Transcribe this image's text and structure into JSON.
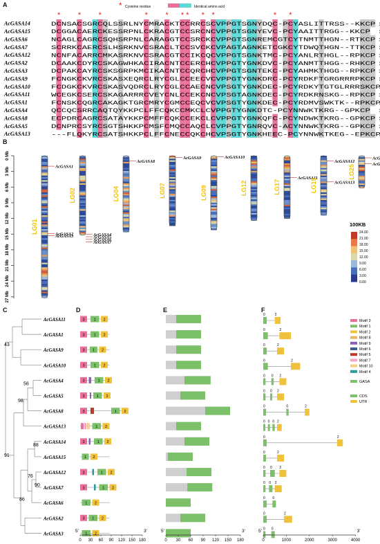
{
  "panels": {
    "a": "A",
    "b": "B",
    "c": "C",
    "d": "D",
    "e": "E",
    "f": "F"
  },
  "legend_top": {
    "star": "*",
    "cys": "Cysteine residue",
    "ident": "Identical amino acid"
  },
  "alignment": [
    {
      "name": "AcGASA14",
      "seq": "DCNSACSGRCQLSSRLNYCMRACKTCCRRCSCVPPGTSGNYDQC-PCYASLITTRSS--KKCP",
      "num": "60"
    },
    {
      "name": "AcGASA15",
      "seq": "DCGGACAERCKESSRPNLCKRACGTCCSRCNCVPPGTSGNYEVC-PCYAAITTRGG--KKCP",
      "num": "60"
    },
    {
      "name": "AcGASA6",
      "seq": "NCAGLCAGRCSQHSRPNLCARAGGTCCSRCKCVPPGTSGNREMCGTCYTNMTTHGN--RTKCP",
      "num": "61"
    },
    {
      "name": "AcGASA7",
      "seq": "SCRRKCAERCSLHSRKNVCSRACLTCCSVCKCVPAGTAGNKETCGKCYTDWQTHGN--TTKCP",
      "num": "61"
    },
    {
      "name": "AcGASA12",
      "seq": "NCNFACARRCMKASRKNVCSRACGTCCIKCQCVPPGTSGNKTMC-PCYANLRTHGL--RPKCP",
      "num": "60"
    },
    {
      "name": "AcGASA2",
      "seq": "DCAAKCDYRCSKAGWHKACIRACNTCCERCHCVPPGTYGNKDVC-PCYANMTTHGG--RHKCP",
      "num": "60"
    },
    {
      "name": "AcGASA3",
      "seq": "DCPAKCAYRCSKSGRPKMCIKACNTCCQRCHCVPPGTSGNTEKC-PCYAHMKTHGG--RPKCP",
      "num": "60"
    },
    {
      "name": "AcGASA9",
      "seq": "FCNGKCKVRCSKASXEQRCLRYCGLCCEECVCVPPGTYGNKDRC-PCYRDKFTGRGRRRPKCP",
      "num": "63"
    },
    {
      "name": "AcGASA10",
      "seq": "FCDGKCKVRCSKASVQDRCLRYCGLCCAECNCVPSGTYGNKDEC-PCYRDKYTGTGLRRRSKCP",
      "num": "63"
    },
    {
      "name": "AcGASA11",
      "seq": "WCEGKCSERCSKAGARRRCVEYCNLCCEKCNCVPSGTAGNKDEC-PCYRDKRNSKG--RPKCP",
      "num": "60"
    },
    {
      "name": "AcGASA1",
      "seq": "FCNSKCQGRCAKAGKTGRCMRYCGMCCEQCVCVPSGTYGNKDEC-PCYRDMVSWKTK--RPKCP",
      "num": "61"
    },
    {
      "name": "AcGASA4",
      "seq": "QCCQCSRRCAQTQYKKPCLFFCQKCCMKCLCVPPGTYGNKDTC-PCYNNWKTKRG--GPKCP",
      "num": "60"
    },
    {
      "name": "AcGASA8",
      "seq": "ECPDRCAGRCSATAYKKPCMFFCQKCCEKCLCVPPGTYGNKQFC-PCYNDWKTKRG--GPKCP",
      "num": "60"
    },
    {
      "name": "AcGASA5",
      "seq": "DCNPRCSYRCSGTSHKKPCMSFCMQCCAQCLCVPPGTYGNRQVC-ACYNNWKTKRG--GPKCP",
      "num": "60"
    },
    {
      "name": "AcGASA13",
      "seq": "---FLQKYRCSATSHKKPCLFFCNECCQKCHCVPSGTYGNKHEEC-PCYNNWKTKEG--EPKCP",
      "num": "57"
    }
  ],
  "chromosomes": [
    {
      "name": "LG01",
      "mb": 27.2,
      "genes": [
        {
          "name": "AcGASA1",
          "mb": 2.0
        },
        {
          "name": "AcGASA2",
          "mb": 14.9
        },
        {
          "name": "AcGASA3",
          "mb": 15.3
        }
      ]
    },
    {
      "name": "LG02",
      "mb": 15.2,
      "genes": [
        {
          "name": "AcGASA4",
          "mb": 15.0
        },
        {
          "name": "AcGASA5",
          "mb": 15.5
        },
        {
          "name": "AcGASA6",
          "mb": 16.0
        },
        {
          "name": "AcGASA7",
          "mb": 16.5
        }
      ]
    },
    {
      "name": "LG04",
      "mb": 14.6,
      "genes": [
        {
          "name": "AcGASA8",
          "mb": 1.0
        }
      ]
    },
    {
      "name": "LG07",
      "mb": 13.4,
      "genes": [
        {
          "name": "AcGASA9",
          "mb": 0.3
        }
      ]
    },
    {
      "name": "LG09",
      "mb": 14.2,
      "genes": [
        {
          "name": "AcGASA10",
          "mb": 0.2
        }
      ]
    },
    {
      "name": "LG12",
      "mb": 12.4,
      "genes": []
    },
    {
      "name": "LG17",
      "mb": 12.0,
      "genes": [
        {
          "name": "AcGASA11",
          "mb": 4.2
        }
      ]
    },
    {
      "name": "LG19",
      "mb": 11.4,
      "genes": [
        {
          "name": "AcGASA12",
          "mb": 1.0
        },
        {
          "name": "AcGASA13",
          "mb": 5.0
        }
      ]
    },
    {
      "name": "LG25",
      "mb": 6.2,
      "genes": [
        {
          "name": "AcGASA14",
          "mb": 0.4
        },
        {
          "name": "AcGASA15",
          "mb": 1.5
        }
      ]
    }
  ],
  "mb_axis": {
    "ticks": [
      "0 Mb",
      "3 Mb",
      "6 Mb",
      "9 Mb",
      "12 Mb",
      "15 Mb",
      "18 Mb",
      "21 Mb",
      "24 Mb",
      "27 Mb"
    ]
  },
  "heat_legend": {
    "title": "100KB",
    "ticks": [
      "24.00",
      "21.00",
      "18.00",
      "15.00",
      "12.00",
      "9.00",
      "6.00",
      "3.00",
      "0.00"
    ]
  },
  "tree": {
    "leaves": [
      "AcGASA11",
      "AcGASA1",
      "AcGASA9",
      "AcGASA10",
      "AcGASA4",
      "AcGASA5",
      "AcGASA8",
      "AcGASA13",
      "AcGASA14",
      "AcGASA15",
      "AcGASA12",
      "AcGASA7",
      "AcGASA6",
      "AcGASA2",
      "AcGASA3"
    ],
    "bootstrap": [
      "43",
      "56",
      "98",
      "88",
      "76",
      "91",
      "90",
      "86"
    ]
  },
  "motifs": [
    [
      [
        0,
        20,
        3
      ],
      [
        30,
        55,
        1
      ],
      [
        60,
        80,
        2
      ]
    ],
    [
      [
        0,
        20,
        3
      ],
      [
        30,
        55,
        1
      ],
      [
        60,
        80,
        2
      ]
    ],
    [
      [
        0,
        20,
        3
      ],
      [
        28,
        50,
        1
      ],
      [
        55,
        75,
        2
      ]
    ],
    [
      [
        0,
        20,
        3
      ],
      [
        30,
        55,
        1
      ],
      [
        60,
        80,
        2
      ]
    ],
    [
      [
        0,
        20,
        3
      ],
      [
        25,
        32,
        9
      ],
      [
        42,
        67,
        1
      ],
      [
        72,
        92,
        2
      ]
    ],
    [
      [
        0,
        20,
        3
      ],
      [
        28,
        32,
        9
      ],
      [
        38,
        63,
        1
      ],
      [
        68,
        88,
        2
      ]
    ],
    [
      [
        0,
        20,
        3
      ],
      [
        30,
        40,
        5
      ],
      [
        90,
        115,
        1
      ],
      [
        120,
        140,
        2
      ]
    ],
    [
      [
        2,
        10,
        3
      ],
      [
        12,
        18,
        7
      ],
      [
        20,
        28,
        10
      ],
      [
        35,
        60,
        1
      ],
      [
        65,
        85,
        2
      ]
    ],
    [
      [
        0,
        20,
        3
      ],
      [
        25,
        30,
        9
      ],
      [
        40,
        65,
        1
      ],
      [
        70,
        90,
        2
      ]
    ],
    [
      [
        5,
        25,
        1
      ],
      [
        30,
        50,
        2
      ]
    ],
    [
      [
        0,
        20,
        3
      ],
      [
        35,
        40,
        4
      ],
      [
        50,
        75,
        1
      ],
      [
        80,
        100,
        2
      ]
    ],
    [
      [
        0,
        20,
        3
      ],
      [
        40,
        45,
        4
      ],
      [
        55,
        80,
        1
      ],
      [
        85,
        105,
        2
      ]
    ],
    [
      [
        5,
        30,
        1
      ],
      [
        35,
        55,
        2
      ]
    ],
    [
      [
        0,
        20,
        3
      ],
      [
        25,
        50,
        1
      ],
      [
        55,
        75,
        2
      ]
    ],
    [
      [
        5,
        30,
        1
      ],
      [
        35,
        55,
        2
      ]
    ]
  ],
  "domain_bars": [
    {
      "len": 85,
      "gasa": [
        25,
        85
      ]
    },
    {
      "len": 85,
      "gasa": [
        25,
        85
      ]
    },
    {
      "len": 85,
      "gasa": [
        25,
        85
      ]
    },
    {
      "len": 85,
      "gasa": [
        25,
        85
      ]
    },
    {
      "len": 108,
      "gasa": [
        45,
        108
      ]
    },
    {
      "len": 95,
      "gasa": [
        35,
        95
      ]
    },
    {
      "len": 155,
      "gasa": [
        95,
        155
      ]
    },
    {
      "len": 85,
      "gasa": [
        25,
        85
      ]
    },
    {
      "len": 105,
      "gasa": [
        45,
        105
      ]
    },
    {
      "len": 65,
      "gasa": [
        5,
        65
      ]
    },
    {
      "len": 110,
      "gasa": [
        50,
        110
      ]
    },
    {
      "len": 112,
      "gasa": [
        52,
        112
      ]
    },
    {
      "len": 60,
      "gasa": [
        0,
        60
      ]
    },
    {
      "len": 95,
      "gasa": [
        35,
        95
      ]
    },
    {
      "len": 60,
      "gasa": [
        0,
        60
      ]
    }
  ],
  "gene_struct": [
    {
      "exons": [
        [
          0,
          150,
          "cds"
        ],
        [
          500,
          750,
          "utr"
        ]
      ]
    },
    {
      "exons": [
        [
          0,
          200,
          "cds"
        ],
        [
          700,
          1200,
          "utr"
        ]
      ]
    },
    {
      "exons": [
        [
          0,
          150,
          "cds"
        ],
        [
          600,
          900,
          "utr"
        ]
      ]
    },
    {
      "exons": [
        [
          0,
          200,
          "cds"
        ],
        [
          1200,
          1600,
          "utr"
        ]
      ]
    },
    {
      "exons": [
        [
          0,
          100,
          "cds"
        ],
        [
          350,
          450,
          "cds"
        ],
        [
          700,
          1000,
          "utr"
        ]
      ]
    },
    {
      "exons": [
        [
          0,
          100,
          "cds"
        ],
        [
          300,
          380,
          "cds"
        ],
        [
          600,
          900,
          "utr"
        ]
      ]
    },
    {
      "exons": [
        [
          0,
          120,
          "cds"
        ],
        [
          1000,
          1100,
          "cds"
        ],
        [
          1800,
          2000,
          "utr"
        ]
      ]
    },
    {
      "exons": [
        [
          0,
          80,
          "cds"
        ],
        [
          200,
          280,
          "cds"
        ],
        [
          400,
          500,
          "cds"
        ],
        [
          600,
          800,
          "utr"
        ]
      ]
    },
    {
      "exons": [
        [
          0,
          150,
          "cds"
        ],
        [
          3200,
          3450,
          "utr"
        ]
      ]
    },
    {
      "exons": [
        [
          0,
          120,
          "cds"
        ],
        [
          600,
          900,
          "utr"
        ]
      ]
    },
    {
      "exons": [
        [
          0,
          100,
          "cds"
        ],
        [
          300,
          500,
          "cds"
        ],
        [
          700,
          1000,
          "utr"
        ]
      ]
    },
    {
      "exons": [
        [
          0,
          100,
          "cds"
        ],
        [
          250,
          400,
          "cds"
        ],
        [
          500,
          800,
          "utr"
        ]
      ]
    },
    {
      "exons": [
        [
          0,
          150,
          "cds"
        ],
        [
          400,
          550,
          "cds"
        ]
      ]
    },
    {
      "exons": [
        [
          0,
          150,
          "cds"
        ],
        [
          900,
          1250,
          "utr"
        ]
      ]
    },
    {
      "exons": [
        [
          0,
          100,
          "cds"
        ],
        [
          350,
          500,
          "cds"
        ]
      ]
    }
  ],
  "axis_d": {
    "ticks": [
      "0",
      "30",
      "60",
      "90",
      "120",
      "150",
      "180"
    ],
    "start": "5'",
    "end": "3'"
  },
  "axis_e": {
    "ticks": [
      "0",
      "30",
      "60",
      "90",
      "120",
      "150",
      "180"
    ],
    "start": "5'",
    "end": "3'"
  },
  "axis_f": {
    "ticks": [
      "0",
      "1000",
      "2000",
      "3000",
      "4000"
    ],
    "start": "5'",
    "end": "3'"
  },
  "motif_legend": [
    {
      "label": "Motif 3",
      "color": "#e8709a"
    },
    {
      "label": "Motif 1",
      "color": "#7cc06a"
    },
    {
      "label": "Motif 2",
      "color": "#f0c23c"
    },
    {
      "label": "Motif 8",
      "color": "#e8b860"
    },
    {
      "label": "Motif 9",
      "color": "#8a60b0"
    },
    {
      "label": "Motif 6",
      "color": "#405a9a"
    },
    {
      "label": "Motif 5",
      "color": "#c0392b"
    },
    {
      "label": "Motif 7",
      "color": "#f2a9c4"
    },
    {
      "label": "Motif 10",
      "color": "#f5d080"
    },
    {
      "label": "Motif 4",
      "color": "#2a9a9a"
    }
  ],
  "domain_legend": {
    "label": "GASA",
    "color": "#7cc06a"
  },
  "struct_legend": [
    {
      "label": "CDS",
      "color": "#7cc06a"
    },
    {
      "label": "UTR",
      "color": "#f0c23c"
    }
  ]
}
